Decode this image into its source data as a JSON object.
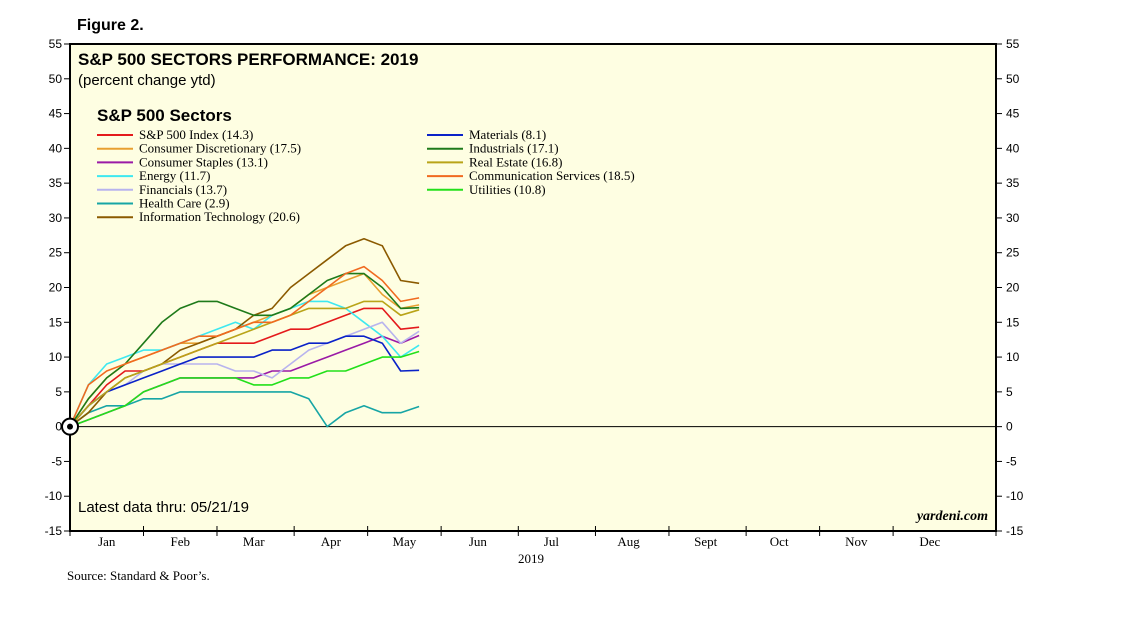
{
  "figure_label": "Figure 2.",
  "source": "Source: Standard & Poor’s.",
  "watermark": "yardeni.com",
  "chart_data": {
    "type": "line",
    "title": "S&P 500 SECTORS PERFORMANCE: 2019",
    "subtitle": "(percent change ytd)",
    "legend_title": "S&P 500 Sectors",
    "note": "Latest data thru: 05/21/19",
    "xlabel": "2019",
    "ylabel": "",
    "ylim": [
      -15,
      55
    ],
    "yticks": [
      -15,
      -10,
      -5,
      0,
      5,
      10,
      15,
      20,
      25,
      30,
      35,
      40,
      45,
      50,
      55
    ],
    "x_unit": "trading days since Dec 31, 2018",
    "xlim": [
      0,
      252
    ],
    "months": [
      "Jan",
      "Feb",
      "Mar",
      "Apr",
      "May",
      "Jun",
      "Jul",
      "Aug",
      "Sept",
      "Oct",
      "Nov",
      "Dec"
    ],
    "month_centers": [
      10,
      30,
      50,
      71,
      91,
      111,
      131,
      152,
      173,
      193,
      214,
      234
    ],
    "month_boundaries": [
      0,
      20,
      40,
      61,
      81,
      101,
      122,
      143,
      163,
      184,
      204,
      224,
      252
    ],
    "x": [
      0,
      5,
      10,
      15,
      20,
      25,
      30,
      35,
      40,
      45,
      50,
      55,
      60,
      65,
      70,
      75,
      80,
      85,
      90,
      95
    ],
    "series": [
      {
        "name": "S&P 500 Index (14.3)",
        "color": "#e41a1c",
        "values": [
          0,
          3,
          6,
          8,
          8,
          9,
          10,
          11,
          12,
          12,
          12,
          13,
          14,
          14,
          15,
          16,
          17,
          17,
          14,
          14.3
        ]
      },
      {
        "name": "Consumer Discretionary (17.5)",
        "color": "#e8a030",
        "values": [
          0,
          4,
          7,
          9,
          10,
          11,
          12,
          12,
          13,
          14,
          15,
          16,
          17,
          19,
          20,
          21,
          22,
          19,
          17,
          17.5
        ]
      },
      {
        "name": "Consumer Staples (13.1)",
        "color": "#9a1aa6",
        "values": [
          0,
          1,
          2,
          3,
          5,
          6,
          7,
          7,
          7,
          7,
          7,
          8,
          8,
          9,
          10,
          11,
          12,
          13,
          12,
          13.1
        ]
      },
      {
        "name": "Energy (11.7)",
        "color": "#3ee8f0",
        "values": [
          0,
          6,
          9,
          10,
          11,
          11,
          12,
          13,
          14,
          15,
          14,
          16,
          17,
          18,
          18,
          17,
          15,
          13,
          10,
          11.7
        ]
      },
      {
        "name": "Financials (13.7)",
        "color": "#b8b4ee",
        "values": [
          0,
          3,
          5,
          6,
          8,
          9,
          9,
          9,
          9,
          8,
          8,
          7,
          9,
          11,
          12,
          13,
          14,
          15,
          12,
          13.7
        ]
      },
      {
        "name": "Health Care (2.9)",
        "color": "#17a5a5",
        "values": [
          0,
          2,
          3,
          3,
          4,
          4,
          5,
          5,
          5,
          5,
          5,
          5,
          5,
          4,
          0,
          2,
          3,
          2,
          2,
          2.9
        ]
      },
      {
        "name": "Information Technology (20.6)",
        "color": "#8b5a00",
        "values": [
          0,
          2,
          5,
          7,
          8,
          9,
          11,
          12,
          13,
          14,
          16,
          17,
          20,
          22,
          24,
          26,
          27,
          26,
          21,
          20.6
        ]
      },
      {
        "name": "Materials (8.1)",
        "color": "#0a22c8",
        "values": [
          0,
          3,
          5,
          6,
          7,
          8,
          9,
          10,
          10,
          10,
          10,
          11,
          11,
          12,
          12,
          13,
          13,
          12,
          8,
          8.1
        ]
      },
      {
        "name": "Industrials (17.1)",
        "color": "#1e7a1a",
        "values": [
          0,
          4,
          7,
          9,
          12,
          15,
          17,
          18,
          18,
          17,
          16,
          16,
          17,
          19,
          21,
          22,
          22,
          20,
          17,
          17.1
        ]
      },
      {
        "name": "Real Estate (16.8)",
        "color": "#b9a418",
        "values": [
          0,
          3,
          5,
          7,
          8,
          9,
          10,
          11,
          12,
          13,
          14,
          15,
          16,
          17,
          17,
          17,
          18,
          18,
          16,
          16.8
        ]
      },
      {
        "name": "Communication Services (18.5)",
        "color": "#f06a20",
        "values": [
          0,
          6,
          8,
          9,
          10,
          11,
          12,
          13,
          13,
          14,
          15,
          15,
          16,
          18,
          20,
          22,
          23,
          21,
          18,
          18.5
        ]
      },
      {
        "name": "Utilities (10.8)",
        "color": "#22e01a",
        "values": [
          0,
          1,
          2,
          3,
          5,
          6,
          7,
          7,
          7,
          7,
          6,
          6,
          7,
          7,
          8,
          8,
          9,
          10,
          10,
          10.8
        ]
      }
    ]
  }
}
